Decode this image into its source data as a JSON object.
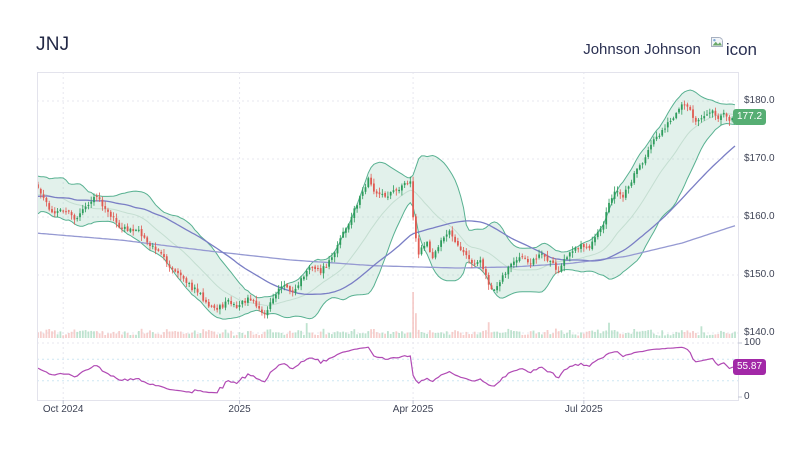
{
  "header": {
    "symbol": "JNJ",
    "company": "Johnson Johnson",
    "logo_alt": "icon"
  },
  "chart_data": {
    "type": "candlestick",
    "symbol": "JNJ",
    "panels": [
      "price with volume and bollinger band",
      "rsi oscillator"
    ],
    "price_axis": {
      "labels": [
        "$180.0",
        "$170.0",
        "$160.0",
        "$150.0",
        "$140.0"
      ],
      "values": [
        180,
        170,
        160,
        150,
        140
      ],
      "visible_range": [
        138.5,
        185
      ]
    },
    "rsi_axis": {
      "labels": [
        "100",
        "0"
      ],
      "values": [
        100,
        0
      ],
      "guides": [
        70,
        30
      ]
    },
    "x_axis": {
      "labels": [
        "Oct 2024",
        "2025",
        "Apr 2025",
        "Jul 2025"
      ],
      "tick_days": [
        9,
        72,
        134,
        195
      ],
      "total_days": 250
    },
    "last_price_label": "177.2",
    "last_price": 177.2,
    "rsi": {
      "value_label": "55.87",
      "value": 55.87,
      "period": 14
    },
    "overlays": [
      "bollinger 20/2",
      "sma50",
      "sma200"
    ],
    "price_anchors": [
      [
        0,
        165
      ],
      [
        2,
        163.2
      ],
      [
        5,
        160.8
      ],
      [
        10,
        161
      ],
      [
        13,
        159.6
      ],
      [
        18,
        162.2
      ],
      [
        21,
        163.6
      ],
      [
        25,
        161
      ],
      [
        28,
        159
      ],
      [
        32,
        157.6
      ],
      [
        36,
        157.9
      ],
      [
        39,
        155.6
      ],
      [
        43,
        154.2
      ],
      [
        46,
        152
      ],
      [
        50,
        150.4
      ],
      [
        53,
        148.6
      ],
      [
        57,
        147
      ],
      [
        60,
        145.4
      ],
      [
        64,
        144
      ],
      [
        68,
        145.6
      ],
      [
        71,
        144.4
      ],
      [
        75,
        146
      ],
      [
        78,
        144.6
      ],
      [
        81,
        143.2
      ],
      [
        84,
        146
      ],
      [
        87,
        148
      ],
      [
        91,
        147
      ],
      [
        94,
        149.4
      ],
      [
        98,
        151.4
      ],
      [
        101,
        150.4
      ],
      [
        105,
        153
      ],
      [
        108,
        156.4
      ],
      [
        112,
        160
      ],
      [
        116,
        164.4
      ],
      [
        118,
        166.6
      ],
      [
        121,
        164
      ],
      [
        124,
        163.4
      ],
      [
        127,
        164.6
      ],
      [
        130,
        165.4
      ],
      [
        133,
        166.2
      ],
      [
        134,
        160
      ],
      [
        136,
        153.6
      ],
      [
        139,
        155.6
      ],
      [
        141,
        153
      ],
      [
        144,
        156
      ],
      [
        147,
        157.6
      ],
      [
        150,
        155
      ],
      [
        153,
        153.4
      ],
      [
        155,
        152
      ],
      [
        158,
        152.6
      ],
      [
        161,
        148.4
      ],
      [
        163,
        147.4
      ],
      [
        166,
        150
      ],
      [
        169,
        152
      ],
      [
        172,
        153
      ],
      [
        176,
        152
      ],
      [
        180,
        153.6
      ],
      [
        183,
        152.4
      ],
      [
        186,
        150.6
      ],
      [
        188,
        152.6
      ],
      [
        191,
        154
      ],
      [
        194,
        155.4
      ],
      [
        197,
        154.6
      ],
      [
        199,
        156.4
      ],
      [
        202,
        158.6
      ],
      [
        204,
        162.4
      ],
      [
        206,
        164.4
      ],
      [
        209,
        163.4
      ],
      [
        212,
        166
      ],
      [
        214,
        168.4
      ],
      [
        217,
        170.4
      ],
      [
        219,
        172.4
      ],
      [
        222,
        174
      ],
      [
        225,
        176.4
      ],
      [
        228,
        178
      ],
      [
        230,
        179.4
      ],
      [
        233,
        178.4
      ],
      [
        235,
        176.4
      ],
      [
        238,
        177.4
      ],
      [
        241,
        178.4
      ],
      [
        243,
        177
      ],
      [
        245,
        178
      ],
      [
        247,
        176.6
      ],
      [
        249,
        177.2
      ]
    ],
    "ma200_anchors": [
      [
        0,
        157.2
      ],
      [
        30,
        156
      ],
      [
        60,
        154.2
      ],
      [
        90,
        152.6
      ],
      [
        120,
        151.6
      ],
      [
        150,
        151.2
      ],
      [
        170,
        151.4
      ],
      [
        190,
        152
      ],
      [
        210,
        153.2
      ],
      [
        230,
        155.5
      ],
      [
        249,
        158.5
      ]
    ],
    "volume_spikes": [
      [
        60,
        1.5
      ],
      [
        81,
        1.7
      ],
      [
        96,
        1.8
      ],
      [
        134,
        3.2
      ],
      [
        135,
        2.2
      ],
      [
        161,
        2.0
      ],
      [
        199,
        1.6
      ],
      [
        204,
        2.1
      ],
      [
        219,
        1.7
      ],
      [
        230,
        1.9
      ],
      [
        237,
        1.6
      ]
    ],
    "colors": {
      "up": "#2d9c5c",
      "down": "#e05a52",
      "band_line": "#58b191",
      "band_fill": "#79bfa4",
      "band_mid": "#c4ded1",
      "ma50": "#7a7ec5",
      "ma200": "#9599d2",
      "rsi_line": "#b14ab4",
      "rsi_guide": "#cde7f3",
      "grid": "#e7e7ef",
      "frame": "#e3e3ec",
      "vol_up": "#aedcc3",
      "vol_down": "#f4c2bf",
      "badge_price_bg": "#56ae73",
      "badge_rsi_bg": "#a228a7",
      "axis_text": "#3f4456",
      "tick": "#c3c7d4"
    }
  }
}
